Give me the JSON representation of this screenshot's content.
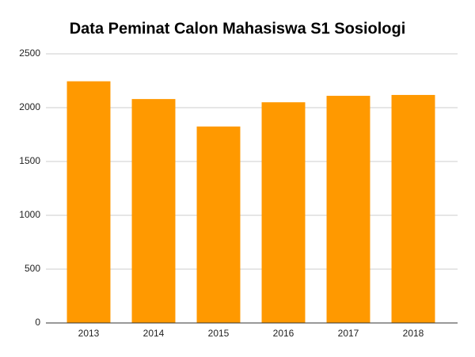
{
  "chart_data": {
    "type": "bar",
    "title": "Data Peminat Calon Mahasiswa S1 Sosiologi",
    "categories": [
      "2013",
      "2014",
      "2015",
      "2016",
      "2017",
      "2018"
    ],
    "values": [
      2245,
      2080,
      1825,
      2050,
      2110,
      2118
    ],
    "color": "#ff9900",
    "ylim": [
      0,
      2500
    ],
    "yticks": [
      0,
      500,
      1000,
      1500,
      2000,
      2500
    ],
    "grid": true
  }
}
